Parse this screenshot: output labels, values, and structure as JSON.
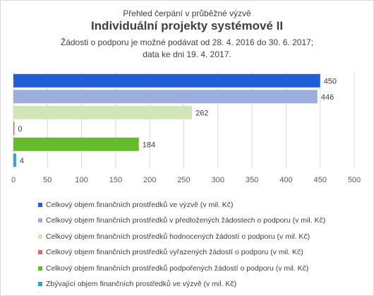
{
  "header": {
    "line1": "Přehled čerpání v průběžné výzvě",
    "title": "Individuální projekty systémové II",
    "line3": "Žádosti o podporu je možné podávat od 28. 4. 2016 do 30. 6. 2017;",
    "line4": "data ke dni 19. 4. 2017."
  },
  "chart_data": {
    "type": "bar",
    "orientation": "horizontal",
    "title": "Individuální projekty systémové II",
    "xlim": [
      0,
      500
    ],
    "ticks": [
      0,
      50,
      100,
      150,
      200,
      250,
      300,
      350,
      400,
      450,
      500
    ],
    "grid": true,
    "legend_position": "bottom",
    "series": [
      {
        "name": "Celkový objem finančních prostředků ve výzvě (v mil. Kč)",
        "value": 450,
        "label": "450",
        "color": "#1f5fd6"
      },
      {
        "name": "Celkový objem finančních prostředků v předložených žádostech o podporu (v mil. Kč)",
        "value": 446,
        "label": "446",
        "color": "#9aaee0"
      },
      {
        "name": "Celkový objem finančních prostředků hodnocených žádostí o podporu (v mil. Kč)",
        "value": 262,
        "label": "262",
        "color": "#cfe6b8"
      },
      {
        "name": "Celkový objem finančních prostředků vyřazených žádostí o podporu (v mil. Kč)",
        "value": 0,
        "label": "0",
        "color": "#e06666"
      },
      {
        "name": "Celkový objem finančních prostředků podpořených žádostí o podporu (v mil. Kč)",
        "value": 184,
        "label": "184",
        "color": "#66bb2a"
      },
      {
        "name": "Zbývající objem finančních prostředků ve výzvě (v mil. Kč)",
        "value": 4,
        "label": "4",
        "color": "#2aa3d6"
      }
    ]
  }
}
